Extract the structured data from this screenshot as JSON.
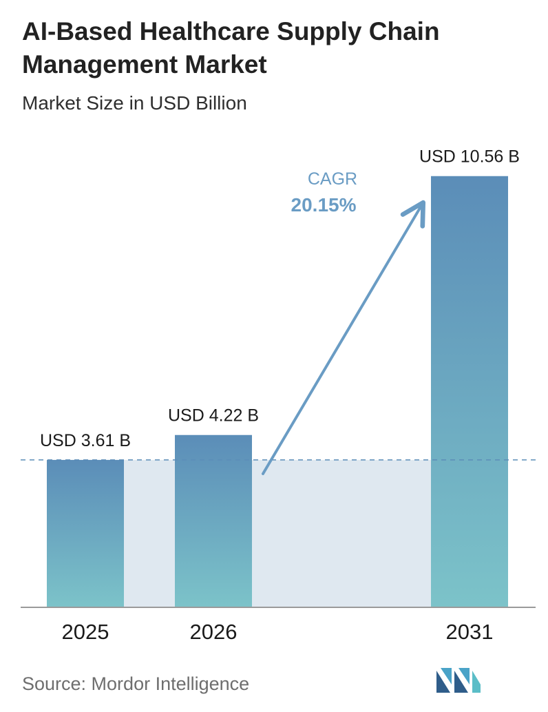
{
  "title": "AI-Based Healthcare Supply Chain Management Market",
  "subtitle": "Market Size in USD Billion",
  "source": "Source: Mordor Intelligence",
  "colors": {
    "bar_top": "#5b8db8",
    "bar_bottom": "#7cc3c9",
    "band": "#dfe8f0",
    "arrow": "#6a9cc4",
    "cagr_text": "#6a9cc4"
  },
  "chart_data": {
    "type": "bar",
    "categories": [
      "2025",
      "2026",
      "2031"
    ],
    "values": [
      3.61,
      4.22,
      10.56
    ],
    "data_labels": [
      "USD 3.61 B",
      "USD 4.22 B",
      "USD 10.56 B"
    ],
    "title": "AI-Based Healthcare Supply Chain Management Market",
    "subtitle": "Market Size in USD Billion",
    "ylim": [
      0,
      11.5
    ],
    "grid": false,
    "baseline_reference_value": 3.61,
    "annotation": {
      "label": "CAGR",
      "value": "20.15%"
    }
  }
}
